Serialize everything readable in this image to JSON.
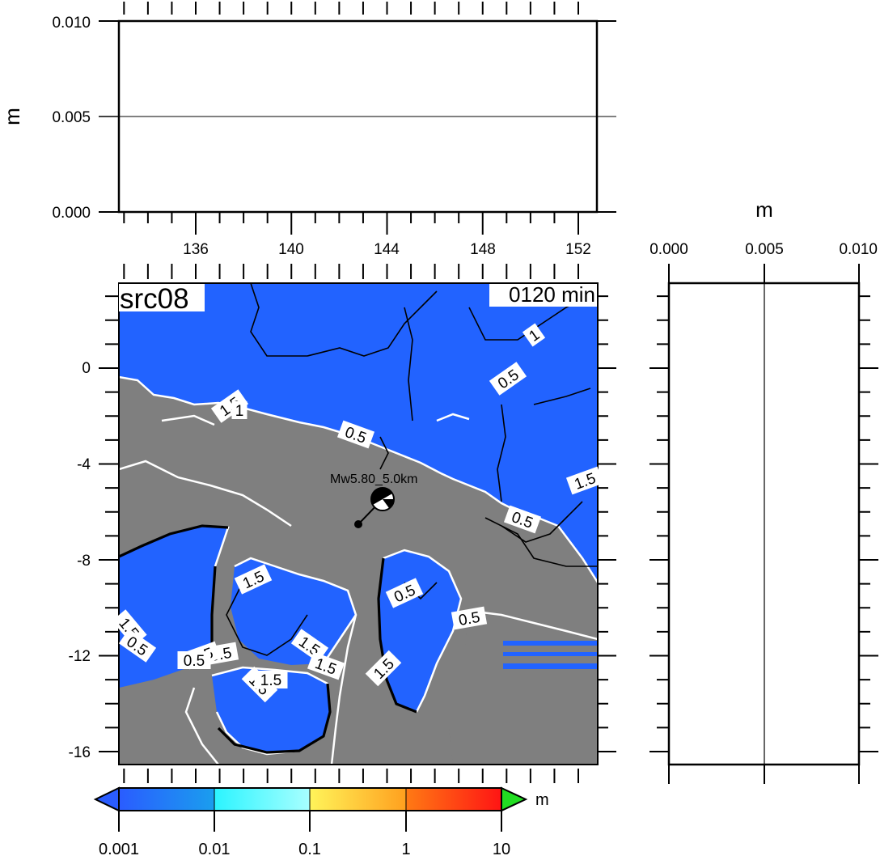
{
  "top_panel": {
    "ylabel": "m",
    "y_ticks": [
      "0.010",
      "0.005",
      "0.000"
    ],
    "x_ticks": [
      "136",
      "140",
      "144",
      "148",
      "152"
    ],
    "reference_line_value": 0.005
  },
  "right_panel": {
    "xlabel": "m",
    "x_ticks": [
      "0.000",
      "0.005",
      "0.010"
    ],
    "reference_line_value": 0.005
  },
  "map": {
    "source_label": "src08",
    "time_label": "0120 min",
    "y_ticks": [
      "0",
      "-4",
      "-8",
      "-12",
      "-16"
    ],
    "event_label": "Mw5.80_5.0km",
    "contour_labels": [
      "1",
      "0.5",
      "1.5",
      "0.5",
      "0.5",
      "1.5",
      "0.5",
      "0.5",
      "1.5",
      "0.5",
      "1.5",
      "1.5",
      "0.5",
      "1.5",
      "1.5",
      "1.5",
      "0.5",
      "0.5",
      "1.5",
      "1"
    ],
    "colors": {
      "ocean": "#2263ff",
      "land": "#7f7f7f",
      "coast": "#ffffff",
      "contour": "#000000"
    }
  },
  "colorbar": {
    "unit": "m",
    "tick_labels": [
      "0.001",
      "0.01",
      "0.1",
      "1",
      "10"
    ],
    "segments": [
      [
        "#2a5cff",
        "#1a9eee"
      ],
      [
        "#2bf4ff",
        "#a8ffff"
      ],
      [
        "#fff45a",
        "#ffa01e"
      ],
      [
        "#ff7a14",
        "#ff1414"
      ]
    ],
    "low_arrow_color": "#2a5cff",
    "high_arrow_color": "#22dd22"
  }
}
